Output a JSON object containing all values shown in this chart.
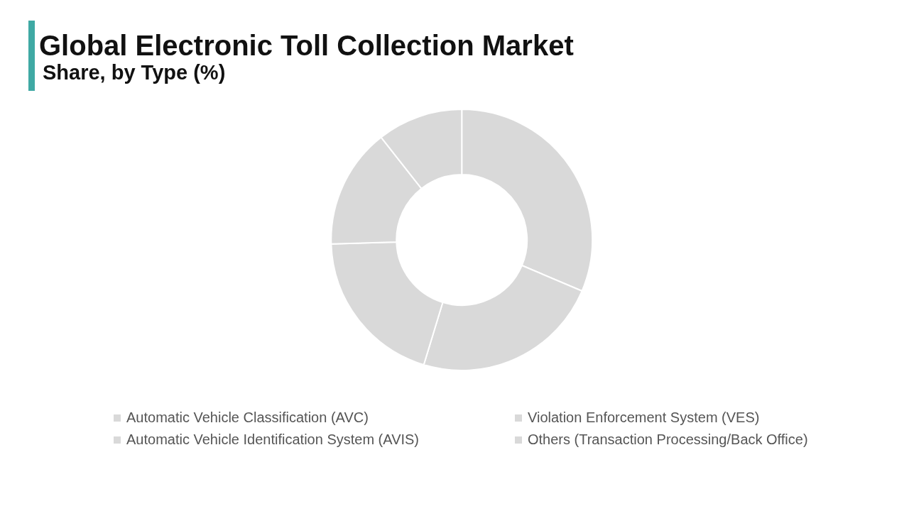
{
  "chart_data": {
    "type": "donut",
    "title": "Global Electronic Toll Collection Market",
    "subtitle": "Share, by Type (%)",
    "categories": [
      "Automatic Vehicle Classification (AVC)",
      "Violation Enforcement System (VES)",
      "Automatic Vehicle Identification System (AVIS)",
      "Others (Transaction Processing/Back Office)",
      null
    ],
    "values": [
      31.4,
      23.3,
      19.8,
      14.9,
      10.6
    ],
    "colors": [
      "#d9d9d9",
      "#d9d9d9",
      "#d9d9d9",
      "#d9d9d9",
      "#d9d9d9"
    ],
    "legend": "bottom"
  }
}
